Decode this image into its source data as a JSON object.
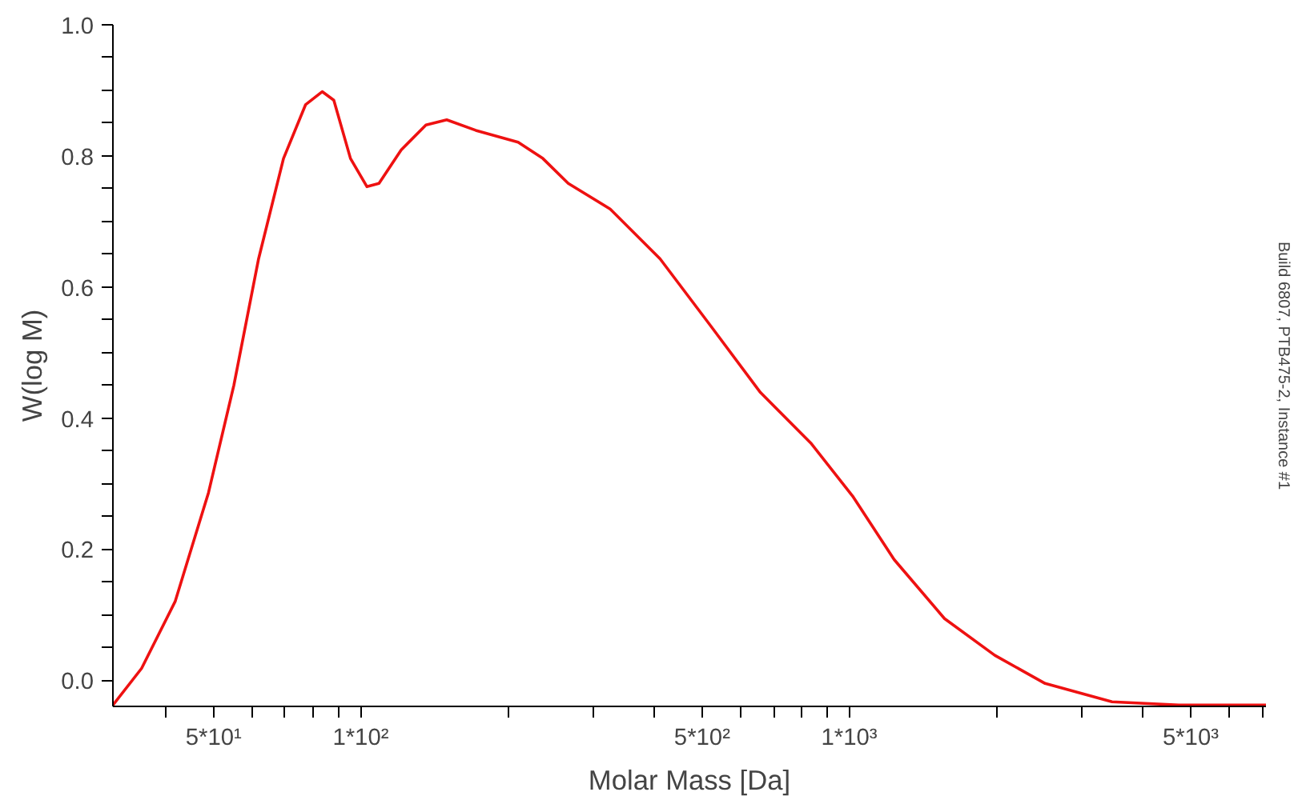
{
  "chart_data": {
    "type": "line",
    "xlabel": "Molar Mass [Da]",
    "ylabel": "W(log M)",
    "log": "x",
    "grid": false,
    "marker": "none",
    "line_style": "solid",
    "annotations": [
      "Build 6807, PTB475-2, Instance #1"
    ],
    "xlim": [
      31.1,
      7130
    ],
    "xticks": [
      {
        "value": 40,
        "label": null
      },
      {
        "value": 50,
        "label": "5*10¹"
      },
      {
        "value": 60,
        "label": null
      },
      {
        "value": 70,
        "label": null
      },
      {
        "value": 80,
        "label": null
      },
      {
        "value": 90,
        "label": null
      },
      {
        "value": 100,
        "label": "1*10²"
      },
      {
        "value": 200,
        "label": null
      },
      {
        "value": 300,
        "label": null
      },
      {
        "value": 400,
        "label": null
      },
      {
        "value": 500,
        "label": "5*10²"
      },
      {
        "value": 600,
        "label": null
      },
      {
        "value": 700,
        "label": null
      },
      {
        "value": 800,
        "label": null
      },
      {
        "value": 900,
        "label": null
      },
      {
        "value": 1000,
        "label": "1*10³"
      },
      {
        "value": 2000,
        "label": null
      },
      {
        "value": 3000,
        "label": null
      },
      {
        "value": 4000,
        "label": null
      },
      {
        "value": 5000,
        "label": "5*10³"
      },
      {
        "value": 6000,
        "label": null
      },
      {
        "value": 7000,
        "label": null
      }
    ],
    "ylim": [
      -0.04,
      1.0
    ],
    "yticks": [
      {
        "value": 0,
        "label": "0.0"
      },
      {
        "value": 0.05,
        "label": null
      },
      {
        "value": 0.1,
        "label": null
      },
      {
        "value": 0.15,
        "label": null
      },
      {
        "value": 0.2,
        "label": "0.2"
      },
      {
        "value": 0.25,
        "label": null
      },
      {
        "value": 0.3,
        "label": null
      },
      {
        "value": 0.35,
        "label": null
      },
      {
        "value": 0.4,
        "label": "0.4"
      },
      {
        "value": 0.45,
        "label": null
      },
      {
        "value": 0.5,
        "label": null
      },
      {
        "value": 0.55,
        "label": null
      },
      {
        "value": 0.6,
        "label": "0.6"
      },
      {
        "value": 0.65,
        "label": null
      },
      {
        "value": 0.7,
        "label": null
      },
      {
        "value": 0.75,
        "label": null
      },
      {
        "value": 0.8,
        "label": "0.8"
      },
      {
        "value": 0.85,
        "label": null
      },
      {
        "value": 0.9,
        "label": null
      },
      {
        "value": 0.95,
        "label": null
      },
      {
        "value": 1.0,
        "label": "1.0"
      }
    ],
    "x": [
      31.1,
      35.6,
      41.7,
      48.8,
      55.0,
      61.8,
      69.5,
      77.1,
      83.4,
      88.1,
      95.3,
      103,
      109,
      121,
      136,
      150,
      172,
      210,
      236,
      266,
      324,
      410,
      520,
      658,
      834,
      1016,
      1236,
      1567,
      1986,
      2518,
      3451,
      4730,
      7130
    ],
    "series": [
      {
        "color": "#ee1111",
        "values": [
          -0.038,
          0.018,
          0.12,
          0.286,
          0.45,
          0.643,
          0.796,
          0.878,
          0.898,
          0.885,
          0.796,
          0.753,
          0.758,
          0.809,
          0.847,
          0.855,
          0.839,
          0.821,
          0.796,
          0.758,
          0.719,
          0.643,
          0.541,
          0.439,
          0.362,
          0.281,
          0.184,
          0.094,
          0.038,
          -0.005,
          -0.033,
          -0.038,
          -0.038
        ]
      }
    ]
  }
}
